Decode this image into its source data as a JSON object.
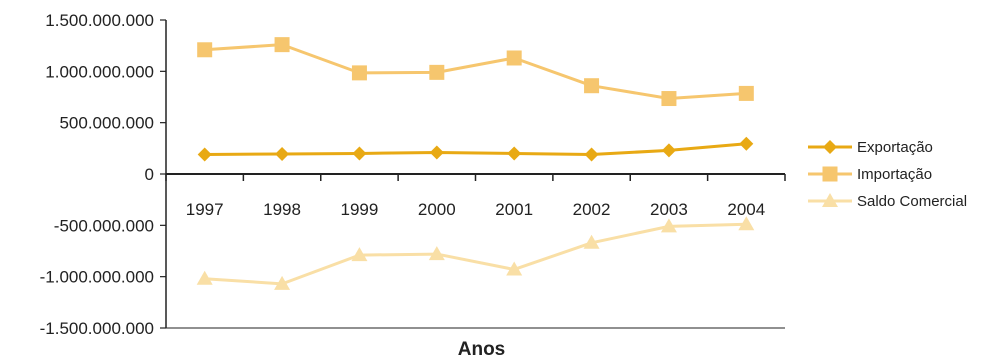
{
  "chart_data": {
    "type": "line",
    "title": "",
    "xlabel": "Anos",
    "ylabel": "",
    "categories": [
      "1997",
      "1998",
      "1999",
      "2000",
      "2001",
      "2002",
      "2003",
      "2004"
    ],
    "ylim": [
      -1500000000,
      1500000000
    ],
    "y_ticks": [
      {
        "value": 1500000000,
        "label": "1.500.000.000"
      },
      {
        "value": 1000000000,
        "label": "1.000.000.000"
      },
      {
        "value": 500000000,
        "label": "500.000.000"
      },
      {
        "value": 0,
        "label": "0"
      },
      {
        "value": -500000000,
        "label": "-500.000.000"
      },
      {
        "value": -1000000000,
        "label": "-1.000.000.000"
      },
      {
        "value": -1500000000,
        "label": "-1.500.000.000"
      }
    ],
    "grid": false,
    "legend_position": "right",
    "series": [
      {
        "name": "Exportação",
        "color": "#e8a914",
        "marker": "diamond",
        "values": [
          190000000,
          195000000,
          200000000,
          210000000,
          200000000,
          190000000,
          230000000,
          295000000
        ]
      },
      {
        "name": "Importação",
        "color": "#f6c66e",
        "marker": "square",
        "values": [
          1210000000,
          1260000000,
          985000000,
          990000000,
          1130000000,
          860000000,
          735000000,
          785000000
        ]
      },
      {
        "name": "Saldo Comercial",
        "color": "#f9dfa6",
        "marker": "triangle",
        "values": [
          -1020000000,
          -1070000000,
          -790000000,
          -780000000,
          -930000000,
          -670000000,
          -510000000,
          -490000000
        ]
      }
    ]
  }
}
